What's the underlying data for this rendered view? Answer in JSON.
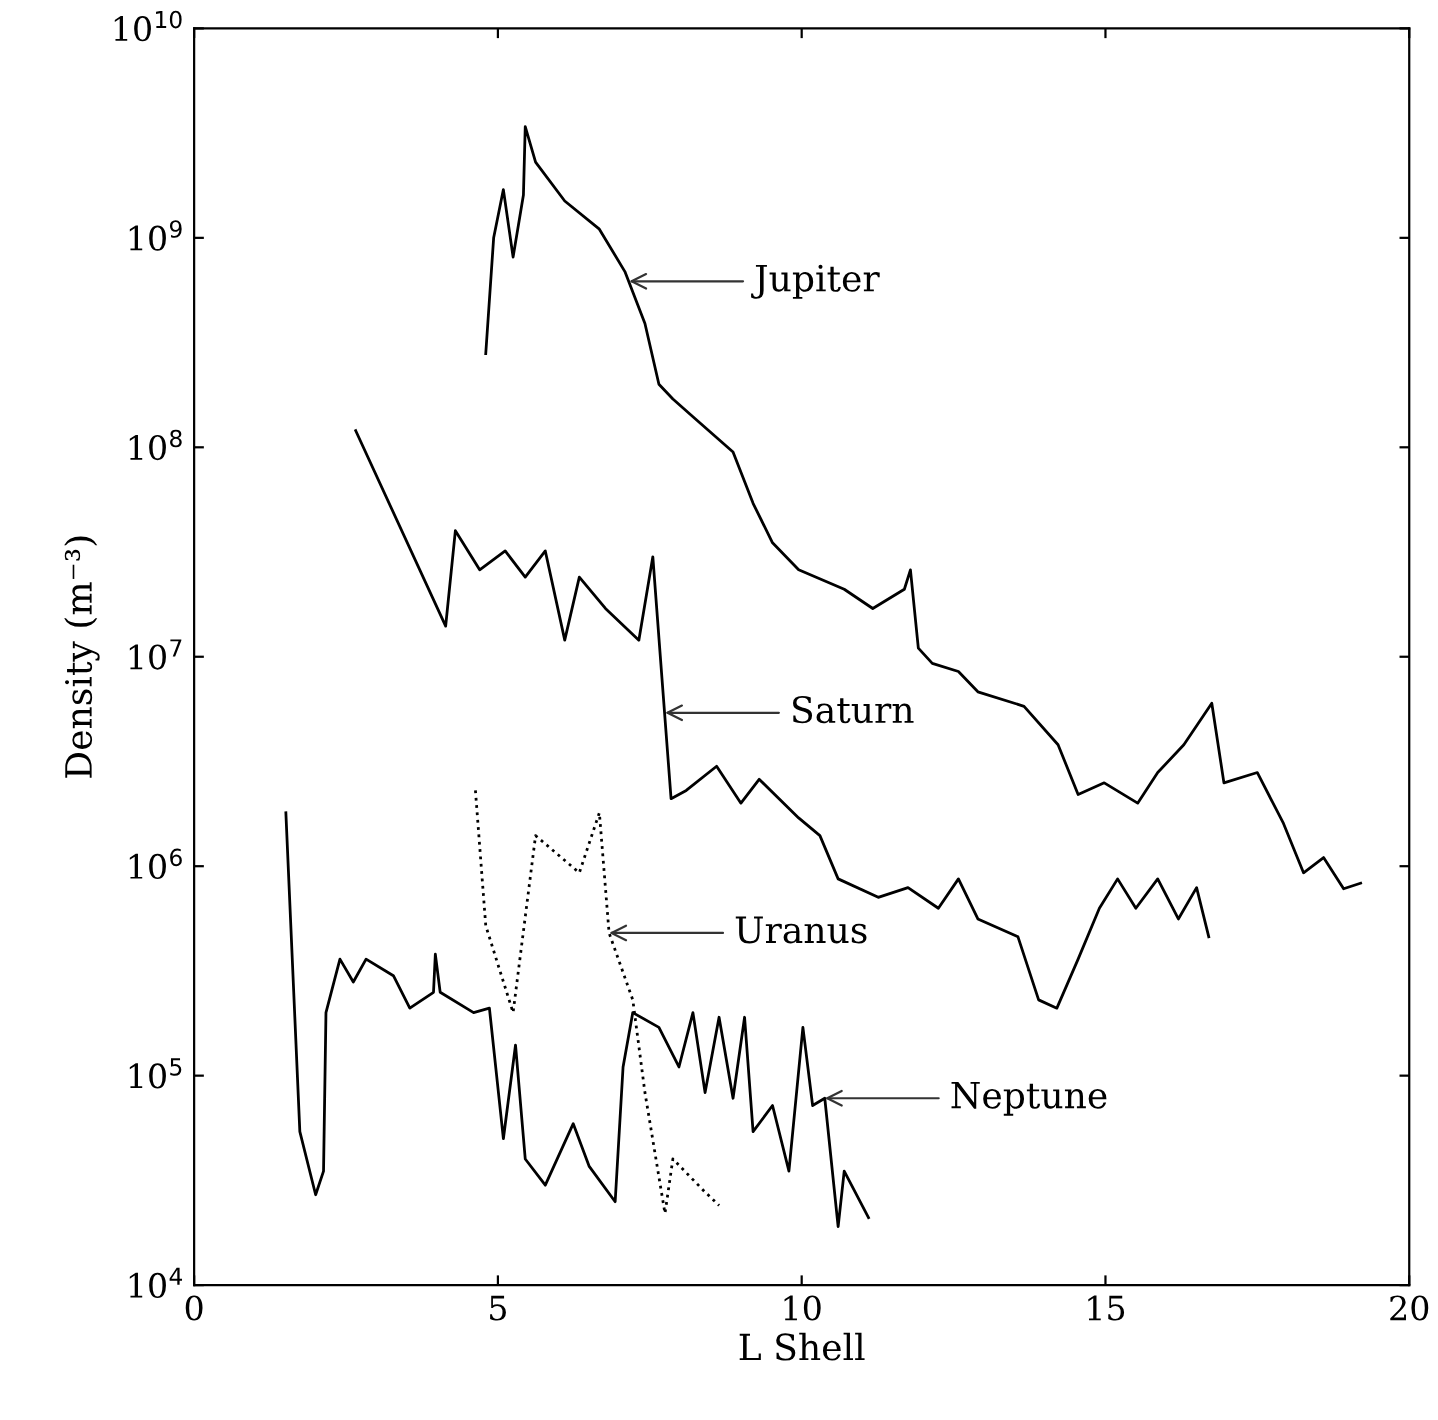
{
  "chart_data": {
    "type": "line",
    "xlabel": "L Shell",
    "ylabel": "Density (m⁻³)",
    "log": "y",
    "grid": false,
    "legend": false,
    "marker": "none",
    "xlim": [
      0,
      20
    ],
    "xticks": [
      0,
      5,
      10,
      15,
      20
    ],
    "ylim": [
      10000,
      10000000000
    ],
    "yticks": [
      {
        "value": 10000,
        "label": "10$^{4}$"
      },
      {
        "value": 100000,
        "label": "10$^{5}$"
      },
      {
        "value": 1000000,
        "label": "10$^{6}$"
      },
      {
        "value": 10000000,
        "label": "10$^{7}$"
      },
      {
        "value": 100000000,
        "label": "10$^{8}$"
      },
      {
        "value": 1000000000,
        "label": "10$^{9}$"
      },
      {
        "value": 10000000000,
        "label": "10$^{10}$"
      }
    ],
    "series": [
      {
        "color": "#000000",
        "line_style": "solid",
        "x": [
          4.8,
          4.93,
          5.09,
          5.25,
          5.42,
          5.45,
          5.62,
          6.1,
          6.67,
          7.09,
          7.42,
          7.65,
          7.88,
          8.21,
          8.87,
          9.2,
          9.52,
          9.95,
          10.7,
          11.17,
          11.69,
          11.79,
          11.92,
          12.15,
          12.58,
          12.9,
          13.66,
          14.22,
          14.55,
          14.98,
          15.53,
          15.86,
          16.29,
          16.75,
          16.95,
          17.5,
          17.93,
          18.26,
          18.59,
          18.92,
          19.2
        ],
        "values": [
          280000000.0,
          1000000000.0,
          1700000000.0,
          810000000.0,
          1600000000.0,
          3400000000.0,
          2300000000.0,
          1500000000.0,
          1100000000.0,
          690000000.0,
          390000000.0,
          200000000.0,
          170000000.0,
          140000000.0,
          95000000.0,
          54000000.0,
          35000000.0,
          26000000.0,
          21000000.0,
          17000000.0,
          21000000.0,
          26000000.0,
          11000000.0,
          9300000.0,
          8500000.0,
          6800000.0,
          5800000.0,
          3800000.0,
          2200000.0,
          2500000.0,
          2000000.0,
          2800000.0,
          3800000.0,
          6000000.0,
          2500000.0,
          2800000.0,
          1600000.0,
          930000.0,
          1100000.0,
          780000.0,
          830000.0
        ]
      },
      {
        "color": "#000000",
        "line_style": "solid",
        "x": [
          2.66,
          4.14,
          4.3,
          4.7,
          5.12,
          5.45,
          5.78,
          6.1,
          6.34,
          6.77,
          7.32,
          7.55,
          7.7,
          7.85,
          8.1,
          8.6,
          9.0,
          9.3,
          9.95,
          10.3,
          10.6,
          11.26,
          11.75,
          12.25,
          12.58,
          12.9,
          13.56,
          13.9,
          14.2,
          14.55,
          14.9,
          15.2,
          15.5,
          15.86,
          16.2,
          16.5,
          16.7
        ],
        "values": [
          120000000.0,
          14000000.0,
          40000000.0,
          26000000.0,
          32000000.0,
          24000000.0,
          32000000.0,
          12000000.0,
          24000000.0,
          17000000.0,
          12000000.0,
          30000000.0,
          7900000.0,
          2100000.0,
          2300000.0,
          3000000.0,
          2000000.0,
          2600000.0,
          1700000.0,
          1400000.0,
          870000.0,
          710000.0,
          790000.0,
          630000.0,
          870000.0,
          560000.0,
          460000.0,
          230000.0,
          210000.0,
          360000.0,
          630000.0,
          870000.0,
          630000.0,
          870000.0,
          560000.0,
          790000.0,
          460000.0
        ]
      },
      {
        "color": "#000000",
        "line_style": "dotted",
        "x": [
          4.63,
          4.8,
          5.25,
          5.62,
          6.34,
          6.67,
          6.83,
          7.22,
          7.42,
          7.75,
          7.88,
          8.4,
          8.64
        ],
        "values": [
          2300000.0,
          520000.0,
          200000.0,
          1400000.0,
          930000.0,
          1800000.0,
          480000.0,
          230000.0,
          83000.0,
          22000.0,
          40000.0,
          28000.0,
          24000.0
        ]
      },
      {
        "color": "#000000",
        "line_style": "solid",
        "x": [
          1.51,
          1.74,
          2.0,
          2.13,
          2.17,
          2.4,
          2.62,
          2.83,
          3.28,
          3.55,
          3.94,
          3.97,
          4.05,
          4.6,
          4.86,
          5.09,
          5.29,
          5.45,
          5.78,
          6.24,
          6.5,
          6.93,
          7.06,
          7.22,
          7.65,
          7.98,
          8.21,
          8.41,
          8.64,
          8.87,
          9.06,
          9.2,
          9.52,
          9.79,
          10.02,
          10.18,
          10.38,
          10.6,
          10.7,
          11.1
        ],
        "values": [
          1800000.0,
          54000.0,
          27000.0,
          35000.0,
          200000.0,
          360000.0,
          280000.0,
          360000.0,
          300000.0,
          210000.0,
          250000.0,
          380000.0,
          250000.0,
          200000.0,
          210000.0,
          50000.0,
          140000.0,
          40000.0,
          30000.0,
          59000.0,
          37000.0,
          25000.0,
          110000.0,
          200000.0,
          170000.0,
          110000.0,
          200000.0,
          83000.0,
          190000.0,
          78000.0,
          190000.0,
          54000.0,
          72000.0,
          35000.0,
          170000.0,
          72000.0,
          78000.0,
          19000.0,
          35000.0,
          21000.0
        ]
      }
    ],
    "annotations": [
      {
        "text": "Jupiter",
        "x": 7.16,
        "y": 620000000.0
      },
      {
        "text": "Saturn",
        "x": 7.75,
        "y": 5400000.0
      },
      {
        "text": "Uranus",
        "x": 6.83,
        "y": 480000.0
      },
      {
        "text": "Neptune",
        "x": 10.38,
        "y": 78000.0
      }
    ]
  }
}
